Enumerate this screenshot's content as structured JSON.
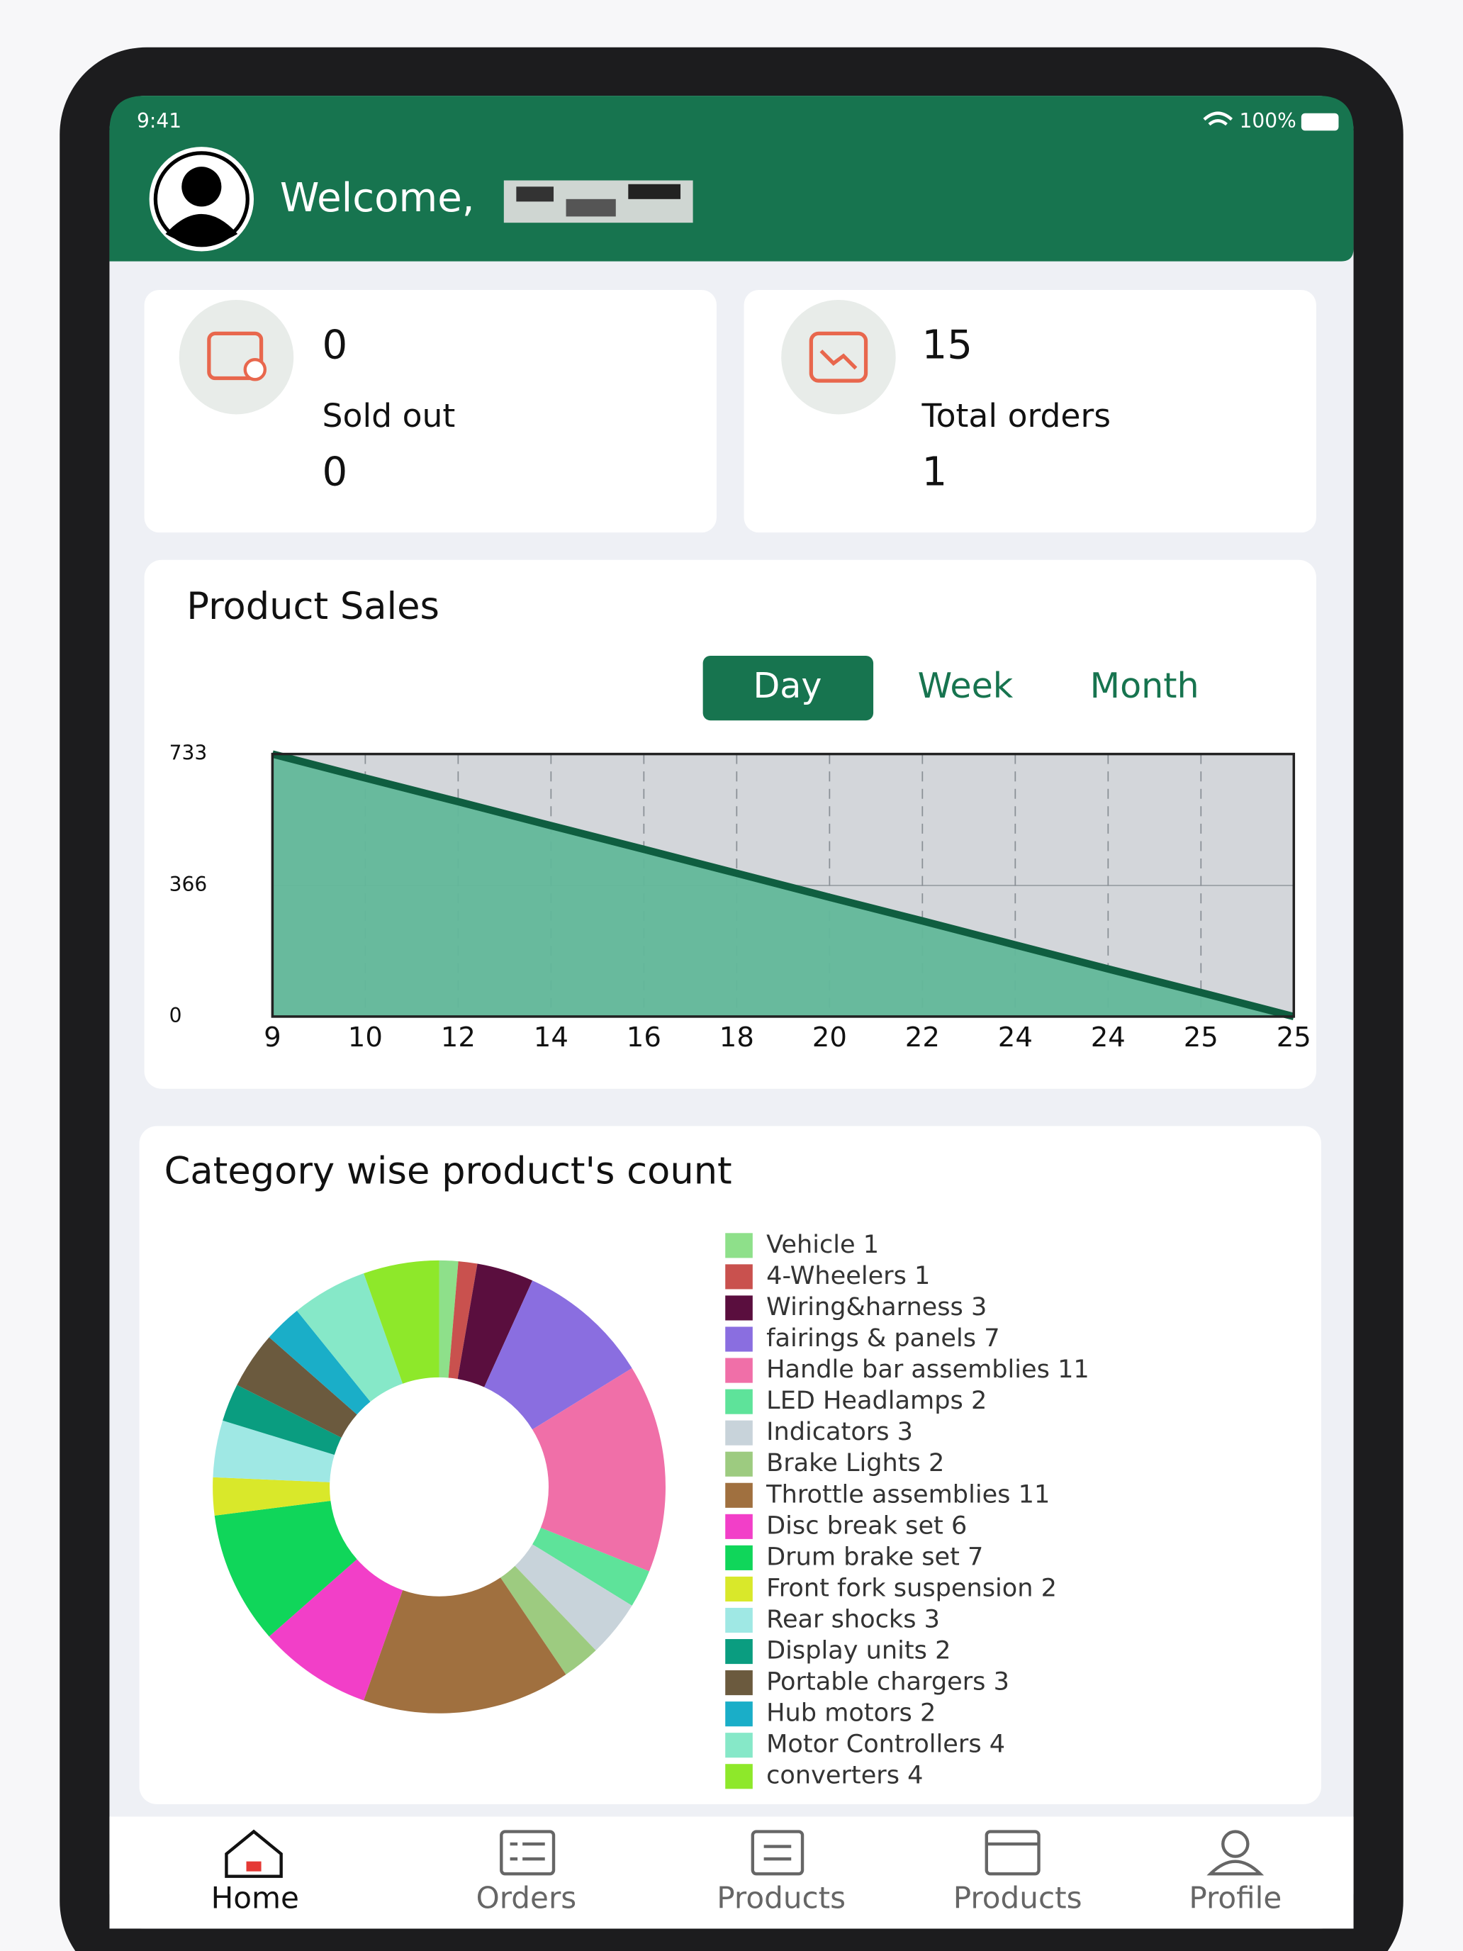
{
  "status_bar": {
    "time": "9:41",
    "battery": "100%"
  },
  "header": {
    "greeting": "Welcome,"
  },
  "stats": [
    {
      "value": "0",
      "label": "Sold out",
      "sub_value": "0"
    },
    {
      "value": "15",
      "label": "Total orders",
      "sub_value": "1"
    }
  ],
  "chart_data": [
    {
      "type": "area",
      "title": "Product Sales",
      "tabs": [
        "Day",
        "Week",
        "Month"
      ],
      "categories": [
        "9",
        "10",
        "12",
        "14",
        "16",
        "18",
        "20",
        "22",
        "24",
        "24",
        "25",
        "25"
      ],
      "values": [
        733,
        666,
        600,
        533,
        467,
        400,
        333,
        267,
        200,
        133,
        67,
        0
      ],
      "ylim": [
        0,
        733
      ],
      "yticks": [
        0,
        366,
        733
      ],
      "color": "#62b89a",
      "line_color": "#0f5e40",
      "grid": true
    },
    {
      "type": "donut",
      "title": "Category wise product's count",
      "categories": [
        "Vehicle",
        "4-Wheelers",
        "Wiring&harness",
        "fairings & panels",
        "Handle bar assemblies",
        "LED Headlamps",
        "Indicators",
        "Brake Lights",
        "Throttle assemblies",
        "Disc break set",
        "Drum brake set",
        "Front fork suspension",
        "Rear shocks",
        "Display units",
        "Portable chargers",
        "Hub motors",
        "Motor Controllers",
        "converters"
      ],
      "values": [
        1,
        1,
        3,
        7,
        11,
        2,
        3,
        2,
        11,
        6,
        7,
        2,
        3,
        2,
        3,
        2,
        4,
        4
      ],
      "colors": [
        "#8ee08a",
        "#c9514e",
        "#5a0e3e",
        "#8a6ee0",
        "#f06fa8",
        "#5ee39a",
        "#c8d3da",
        "#9dcb80",
        "#a0703f",
        "#f23fc8",
        "#10d65a",
        "#d9e82a",
        "#9fe8e4",
        "#0a9d80",
        "#6b5a3e",
        "#1aaec8",
        "#86e8c8",
        "#8ee82a"
      ]
    }
  ],
  "nav": [
    "Home",
    "Orders",
    "Products",
    "Products",
    "Profile"
  ]
}
